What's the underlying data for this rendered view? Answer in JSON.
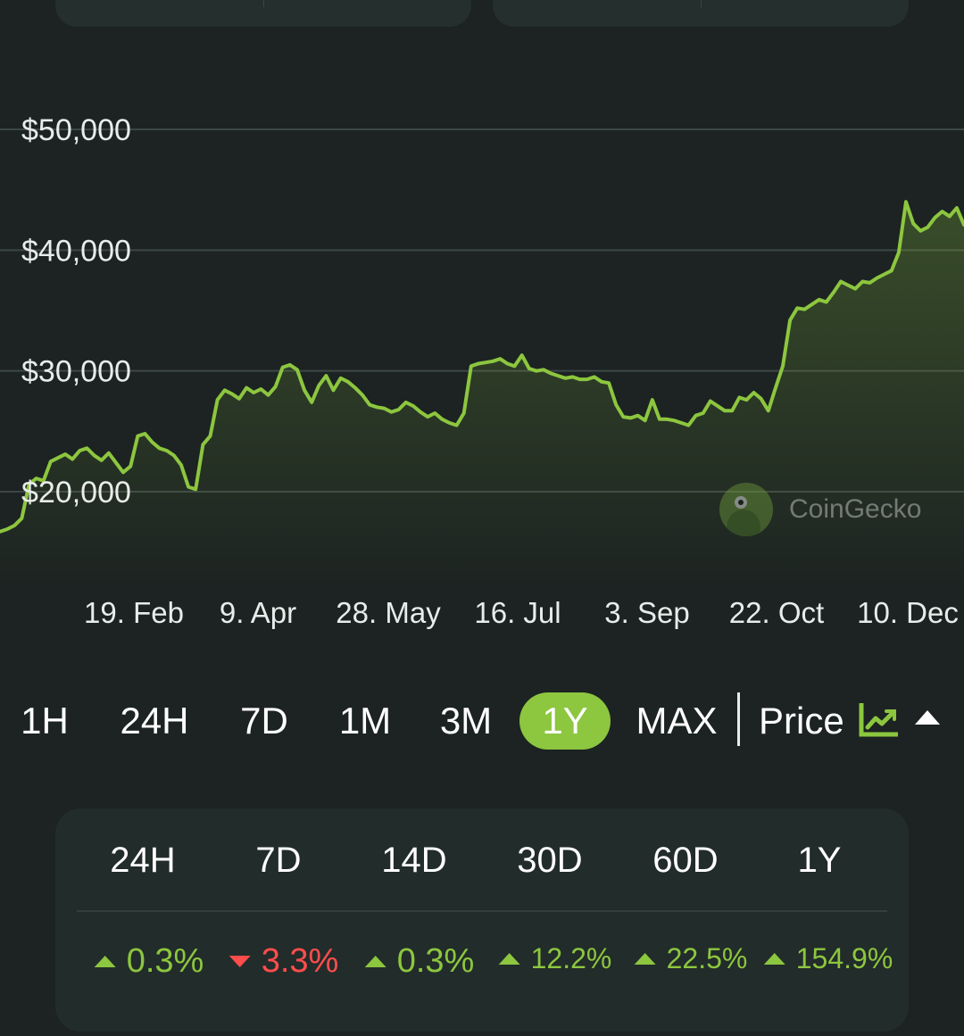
{
  "chart_data": {
    "type": "area",
    "title": "",
    "xlabel": "",
    "ylabel": "",
    "ylim": [
      15000,
      53000
    ],
    "y_ticks": [
      20000,
      30000,
      40000,
      50000
    ],
    "y_tick_labels": [
      "$20,000",
      "$30,000",
      "$40,000",
      "$50,000"
    ],
    "x_tick_labels": [
      "19. Feb",
      "9. Apr",
      "28. May",
      "16. Jul",
      "3. Sep",
      "22. Oct",
      "10. Dec"
    ],
    "line_color": "#8dc63f",
    "grid": true,
    "series": [
      {
        "values": [
          16700,
          16900,
          17200,
          17800,
          20600,
          21100,
          20900,
          22500,
          22800,
          23100,
          22700,
          23400,
          23600,
          23000,
          22600,
          23200,
          22400,
          21600,
          22100,
          24600,
          24800,
          24100,
          23600,
          23400,
          23000,
          22200,
          20400,
          20200,
          23900,
          24600,
          27600,
          28400,
          28100,
          27700,
          28600,
          28200,
          28500,
          28000,
          28700,
          30300,
          30500,
          30100,
          28400,
          27400,
          28800,
          29600,
          28400,
          29400,
          29100,
          28600,
          28000,
          27200,
          27000,
          26900,
          26600,
          26800,
          27400,
          27100,
          26600,
          26200,
          26500,
          26000,
          25700,
          25500,
          26500,
          30400,
          30600,
          30700,
          30800,
          31000,
          30600,
          30400,
          31300,
          30200,
          30000,
          30100,
          29800,
          29600,
          29400,
          29500,
          29300,
          29300,
          29500,
          29100,
          29000,
          27200,
          26200,
          26100,
          26300,
          25900,
          27600,
          26000,
          26000,
          25900,
          25700,
          25500,
          26300,
          26500,
          27500,
          27100,
          26700,
          26700,
          27800,
          27600,
          28200,
          27700,
          26700,
          28600,
          30400,
          34200,
          35200,
          35100,
          35500,
          35900,
          35700,
          36500,
          37400,
          37100,
          36800,
          37400,
          37300,
          37700,
          38000,
          38300,
          39800,
          44000,
          42200,
          41600,
          41900,
          42700,
          43200,
          42800,
          43500,
          42100
        ]
      }
    ]
  },
  "watermark": {
    "text": "CoinGecko",
    "icon": "coingecko-logo"
  },
  "range_selector": {
    "options": [
      "1H",
      "24H",
      "7D",
      "1M",
      "3M",
      "1Y",
      "MAX"
    ],
    "active": "1Y",
    "metric_label": "Price",
    "metric_icon": "line-chart-icon",
    "toggle_icon": "caret-up-icon"
  },
  "performance": {
    "columns": [
      {
        "label": "24H",
        "value": "0.3%",
        "direction": "up"
      },
      {
        "label": "7D",
        "value": "3.3%",
        "direction": "down"
      },
      {
        "label": "14D",
        "value": "0.3%",
        "direction": "up"
      },
      {
        "label": "30D",
        "value": "12.2%",
        "direction": "up"
      },
      {
        "label": "60D",
        "value": "22.5%",
        "direction": "up"
      },
      {
        "label": "1Y",
        "value": "154.9%",
        "direction": "up"
      }
    ],
    "up_color": "#8dc63f",
    "down_color": "#ff4d4d"
  }
}
